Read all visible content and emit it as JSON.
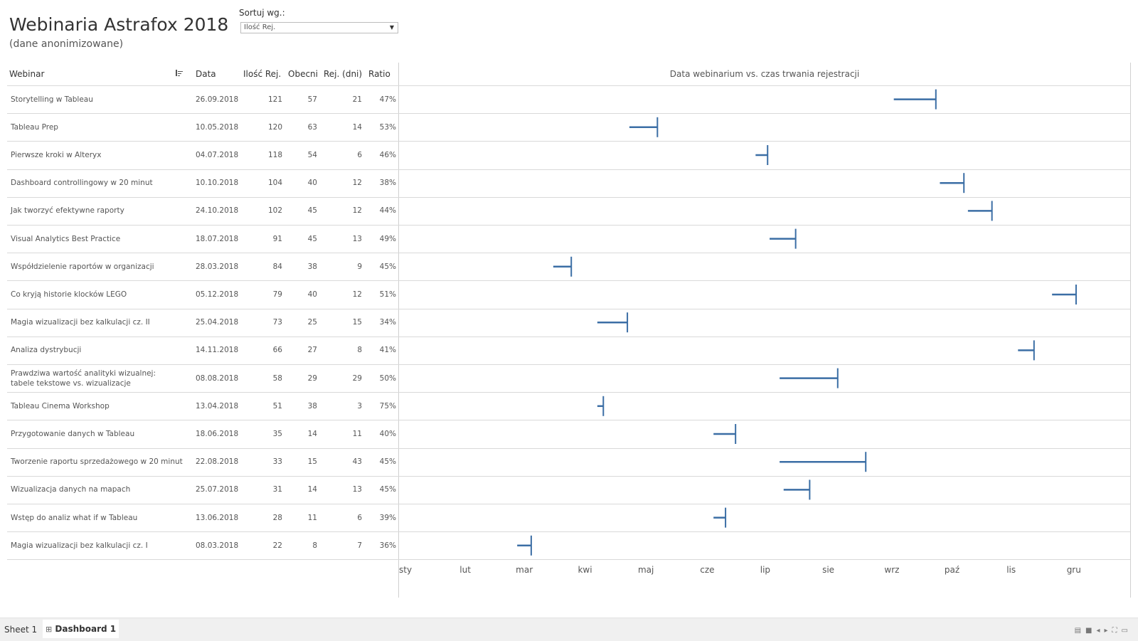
{
  "header": {
    "title": "Webinaria Astrafox 2018",
    "subtitle": "(dane anonimizowane)"
  },
  "sort": {
    "label": "Sortuj wg.:",
    "selected": "Ilość Rej."
  },
  "columns": [
    "Webinar",
    "Data",
    "Ilość Rej.",
    "Obecni",
    "Rej. (dni)",
    "Ratio"
  ],
  "chart_data": {
    "type": "table",
    "title": "Data webinarium vs. czas trwania rejestracji",
    "x_axis_labels": [
      "sty",
      "lut",
      "mar",
      "kwi",
      "maj",
      "cze",
      "lip",
      "sie",
      "wrz",
      "paź",
      "lis",
      "gru"
    ],
    "x_range": [
      "2018-01-01",
      "2018-12-31"
    ],
    "rows": [
      {
        "webinar": "Storytelling w Tableau",
        "date": "26.09.2018",
        "registrations": 121,
        "present": 57,
        "reg_days": 21,
        "ratio": "47%"
      },
      {
        "webinar": "Tableau Prep",
        "date": "10.05.2018",
        "registrations": 120,
        "present": 63,
        "reg_days": 14,
        "ratio": "53%"
      },
      {
        "webinar": "Pierwsze kroki w Alteryx",
        "date": "04.07.2018",
        "registrations": 118,
        "present": 54,
        "reg_days": 6,
        "ratio": "46%"
      },
      {
        "webinar": "Dashboard controllingowy w 20 minut",
        "date": "10.10.2018",
        "registrations": 104,
        "present": 40,
        "reg_days": 12,
        "ratio": "38%"
      },
      {
        "webinar": "Jak tworzyć efektywne raporty",
        "date": "24.10.2018",
        "registrations": 102,
        "present": 45,
        "reg_days": 12,
        "ratio": "44%"
      },
      {
        "webinar": "Visual Analytics Best Practice",
        "date": "18.07.2018",
        "registrations": 91,
        "present": 45,
        "reg_days": 13,
        "ratio": "49%"
      },
      {
        "webinar": "Współdzielenie raportów w organizacji",
        "date": "28.03.2018",
        "registrations": 84,
        "present": 38,
        "reg_days": 9,
        "ratio": "45%"
      },
      {
        "webinar": "Co kryją historie klocków LEGO",
        "date": "05.12.2018",
        "registrations": 79,
        "present": 40,
        "reg_days": 12,
        "ratio": "51%"
      },
      {
        "webinar": "Magia wizualizacji bez kalkulacji cz. II",
        "date": "25.04.2018",
        "registrations": 73,
        "present": 25,
        "reg_days": 15,
        "ratio": "34%"
      },
      {
        "webinar": "Analiza dystrybucji",
        "date": "14.11.2018",
        "registrations": 66,
        "present": 27,
        "reg_days": 8,
        "ratio": "41%"
      },
      {
        "webinar": "Prawdziwa wartość analityki wizualnej: tabele tekstowe vs. wizualizacje",
        "date": "08.08.2018",
        "registrations": 58,
        "present": 29,
        "reg_days": 29,
        "ratio": "50%"
      },
      {
        "webinar": "Tableau Cinema Workshop",
        "date": "13.04.2018",
        "registrations": 51,
        "present": 38,
        "reg_days": 3,
        "ratio": "75%"
      },
      {
        "webinar": "Przygotowanie danych w Tableau",
        "date": "18.06.2018",
        "registrations": 35,
        "present": 14,
        "reg_days": 11,
        "ratio": "40%"
      },
      {
        "webinar": "Tworzenie raportu sprzedażowego w 20 minut",
        "date": "22.08.2018",
        "registrations": 33,
        "present": 15,
        "reg_days": 43,
        "ratio": "45%"
      },
      {
        "webinar": "Wizualizacja danych na mapach",
        "date": "25.07.2018",
        "registrations": 31,
        "present": 14,
        "reg_days": 13,
        "ratio": "45%"
      },
      {
        "webinar": "Wstęp do analiz what if w Tableau",
        "date": "13.06.2018",
        "registrations": 28,
        "present": 11,
        "reg_days": 6,
        "ratio": "39%"
      },
      {
        "webinar": "Magia wizualizacji bez kalkulacji cz. I",
        "date": "08.03.2018",
        "registrations": 22,
        "present": 8,
        "reg_days": 7,
        "ratio": "36%"
      }
    ]
  },
  "colors": {
    "bar": "#3b6ea5",
    "gridline": "#d9d9d9"
  },
  "tabs": {
    "sheet1": "Sheet 1",
    "dashboard1": "Dashboard 1"
  }
}
